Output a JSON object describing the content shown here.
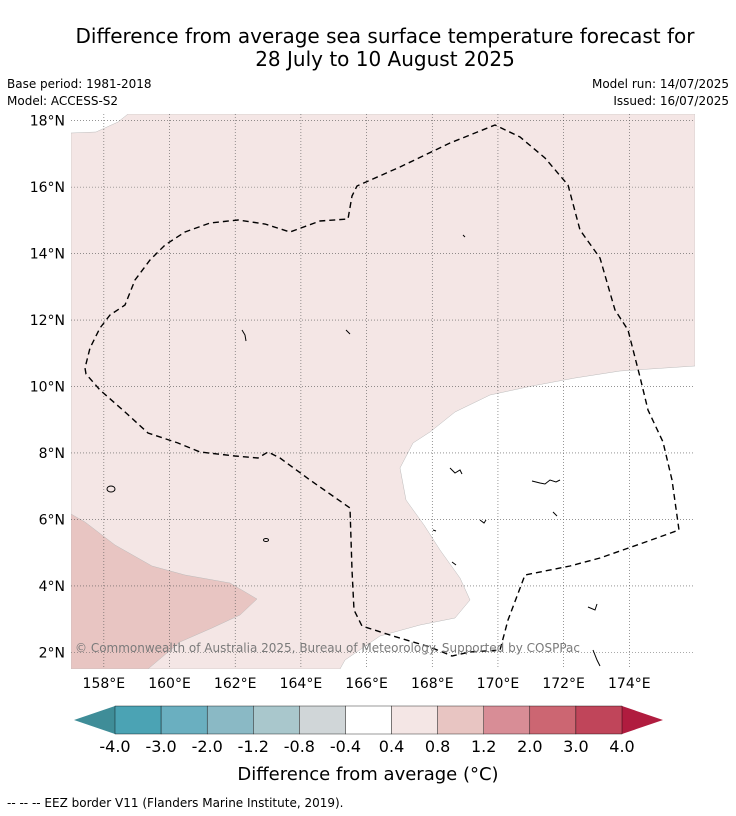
{
  "title_line1": "Difference from average sea surface temperature forecast for",
  "title_line2": "28 July to 10 August 2025",
  "meta": {
    "base_period": "Base period: 1981-2018",
    "model": "Model: ACCESS-S2",
    "model_run": "Model run: 14/07/2025",
    "issued": "Issued: 16/07/2025"
  },
  "map": {
    "lon_range": [
      157.0,
      176.0
    ],
    "lat_range": [
      1.5,
      18.2
    ],
    "lon_ticks": [
      "158°E",
      "160°E",
      "162°E",
      "164°E",
      "166°E",
      "168°E",
      "170°E",
      "172°E",
      "174°E"
    ],
    "lat_ticks": [
      "2°N",
      "4°N",
      "6°N",
      "8°N",
      "10°N",
      "12°N",
      "14°N",
      "16°N",
      "18°N"
    ],
    "credit": "© Commonwealth of Australia 2025, Bureau of Meteorology. Supported by COSPPac",
    "colors": {
      "band_0p4_0p8": "#f4e6e5",
      "band_0p8_1p2": "#e8c5c2",
      "band_m0p4_0p4": "#ffffff"
    }
  },
  "colorbar": {
    "labels": [
      "-4.0",
      "-3.0",
      "-2.0",
      "-1.2",
      "-0.8",
      "-0.4",
      "0.4",
      "0.8",
      "1.2",
      "2.0",
      "3.0",
      "4.0"
    ],
    "colors": [
      "#3f8d98",
      "#4ba3b4",
      "#6aafc0",
      "#8ab9c5",
      "#a9c7cc",
      "#d0d6d8",
      "#ffffff",
      "#f4e6e5",
      "#e8c5c2",
      "#d88d96",
      "#cc6672",
      "#c0455a",
      "#b01c3f"
    ],
    "title": "Difference from average (°C)"
  },
  "legend": {
    "eez": "-- -- -- EEZ border V11 (Flanders Marine Institute, 2019)."
  }
}
